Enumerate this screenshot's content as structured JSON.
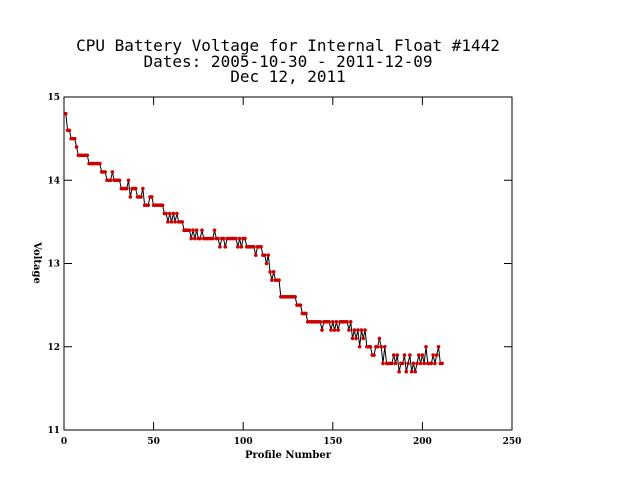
{
  "chart_data": {
    "type": "line",
    "title": "CPU Battery Voltage for Internal Float #1442",
    "subtitle": "Dates:  2005-10-30 -  2011-12-09",
    "date_line": "Dec 12, 2011",
    "x_label": "Profile Number",
    "y_label": "Voltage",
    "xlim": [
      0,
      250
    ],
    "xticks": [
      0,
      50,
      100,
      150,
      200,
      250
    ],
    "ylim": [
      11,
      15
    ],
    "yticks": [
      11,
      12,
      13,
      14,
      15
    ],
    "grid": false,
    "line_color": "#000000",
    "x": [
      1,
      2,
      3,
      4,
      5,
      6,
      7,
      8,
      9,
      10,
      11,
      12,
      13,
      14,
      15,
      16,
      17,
      18,
      19,
      20,
      21,
      22,
      23,
      24,
      25,
      26,
      27,
      28,
      29,
      30,
      31,
      32,
      33,
      34,
      35,
      36,
      37,
      38,
      39,
      40,
      41,
      42,
      43,
      44,
      45,
      46,
      47,
      48,
      49,
      50,
      51,
      52,
      53,
      54,
      55,
      56,
      57,
      58,
      59,
      60,
      61,
      62,
      63,
      64,
      65,
      66,
      67,
      68,
      69,
      70,
      71,
      72,
      73,
      74,
      75,
      76,
      77,
      78,
      79,
      80,
      81,
      82,
      83,
      84,
      85,
      86,
      87,
      88,
      89,
      90,
      91,
      92,
      93,
      94,
      95,
      96,
      97,
      98,
      99,
      100,
      101,
      102,
      103,
      104,
      105,
      106,
      107,
      108,
      109,
      110,
      111,
      112,
      113,
      114,
      115,
      116,
      117,
      118,
      119,
      120,
      121,
      122,
      123,
      124,
      125,
      126,
      127,
      128,
      129,
      130,
      131,
      132,
      133,
      134,
      135,
      136,
      137,
      138,
      139,
      140,
      141,
      142,
      143,
      144,
      145,
      146,
      147,
      148,
      149,
      150,
      151,
      152,
      153,
      154,
      155,
      156,
      157,
      158,
      159,
      160,
      161,
      162,
      163,
      164,
      165,
      166,
      167,
      168,
      169,
      170,
      171,
      172,
      173,
      174,
      175,
      176,
      177,
      178,
      179,
      180,
      181,
      182,
      183,
      184,
      185,
      186,
      187,
      188,
      189,
      190,
      191,
      192,
      193,
      194,
      195,
      196,
      197,
      198,
      199,
      200,
      201,
      202,
      203,
      204,
      205,
      206,
      207,
      208,
      209,
      210,
      211
    ],
    "series": [
      {
        "color": "#cc0000",
        "values": [
          14.8,
          14.6,
          14.6,
          14.5,
          14.5,
          14.5,
          14.4,
          14.3,
          14.3,
          14.3,
          14.3,
          14.3,
          14.3,
          14.2,
          14.2,
          14.2,
          14.2,
          14.2,
          14.2,
          14.2,
          14.1,
          14.1,
          14.1,
          14.0,
          14.0,
          14.0,
          14.1,
          14.0,
          14.0,
          14.0,
          14.0,
          13.9,
          13.9,
          13.9,
          13.9,
          14.0,
          13.8,
          13.9,
          13.9,
          13.9,
          13.8,
          13.8,
          13.8,
          13.9,
          13.7,
          13.7,
          13.7,
          13.8,
          13.8,
          13.7,
          13.7,
          13.7,
          13.7,
          13.7,
          13.7,
          13.6,
          13.6,
          13.5,
          13.6,
          13.5,
          13.6,
          13.5,
          13.6,
          13.5,
          13.5,
          13.5,
          13.4,
          13.4,
          13.4,
          13.4,
          13.3,
          13.4,
          13.3,
          13.4,
          13.3,
          13.3,
          13.4,
          13.3,
          13.3,
          13.3,
          13.3,
          13.3,
          13.3,
          13.4,
          13.3,
          13.3,
          13.2,
          13.3,
          13.3,
          13.2,
          13.3,
          13.3,
          13.3,
          13.3,
          13.3,
          13.3,
          13.2,
          13.3,
          13.2,
          13.3,
          13.3,
          13.2,
          13.2,
          13.2,
          13.2,
          13.2,
          13.1,
          13.2,
          13.2,
          13.2,
          13.1,
          13.1,
          13.0,
          13.1,
          12.9,
          12.8,
          12.9,
          12.8,
          12.8,
          12.8,
          12.6,
          12.6,
          12.6,
          12.6,
          12.6,
          12.6,
          12.6,
          12.6,
          12.6,
          12.5,
          12.5,
          12.5,
          12.4,
          12.4,
          12.4,
          12.3,
          12.3,
          12.3,
          12.3,
          12.3,
          12.3,
          12.3,
          12.3,
          12.2,
          12.3,
          12.3,
          12.3,
          12.3,
          12.2,
          12.3,
          12.2,
          12.3,
          12.2,
          12.3,
          12.3,
          12.3,
          12.3,
          12.3,
          12.2,
          12.3,
          12.1,
          12.2,
          12.1,
          12.2,
          12.0,
          12.2,
          12.1,
          12.2,
          12.0,
          12.0,
          12.0,
          11.9,
          11.9,
          12.0,
          12.0,
          12.1,
          12.0,
          11.8,
          12.0,
          11.8,
          11.8,
          11.8,
          11.8,
          11.9,
          11.8,
          11.9,
          11.7,
          11.8,
          11.8,
          11.9,
          11.7,
          11.8,
          11.9,
          11.7,
          11.8,
          11.7,
          11.8,
          11.9,
          11.8,
          11.9,
          11.8,
          12.0,
          11.8,
          11.8,
          11.8,
          11.9,
          11.8,
          11.9,
          12.0,
          11.8,
          11.8
        ]
      }
    ]
  }
}
